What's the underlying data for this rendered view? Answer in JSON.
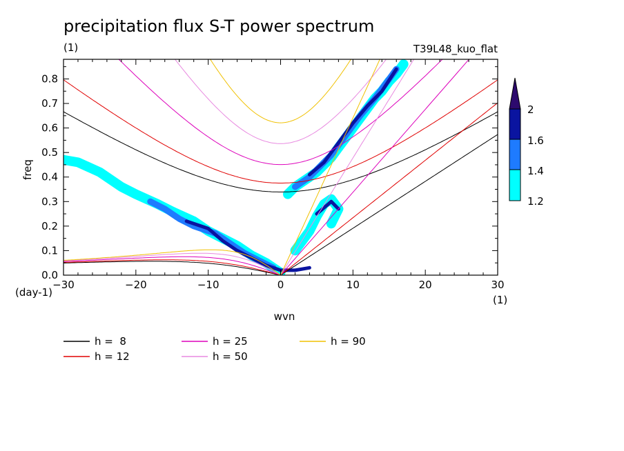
{
  "chart_data": {
    "type": "heatmap",
    "title": "precipitation flux S-T power spectrum",
    "subtitle_left": "(1)",
    "subtitle_right": "T39L48_kuo_flat",
    "xlabel": "wvn",
    "ylabel": "freq",
    "x_unit_label": "(1)",
    "y_unit_label": "(day-1)",
    "xlim": [
      -30,
      30
    ],
    "ylim": [
      0,
      0.88
    ],
    "x_ticks": [
      -30,
      -20,
      -10,
      0,
      10,
      20,
      30
    ],
    "x_tick_labels": [
      "−30",
      "−20",
      "−10",
      "0",
      "10",
      "20",
      "30"
    ],
    "y_ticks": [
      0,
      0.1,
      0.2,
      0.3,
      0.4,
      0.5,
      0.6,
      0.7,
      0.8
    ],
    "y_tick_labels": [
      "0.0",
      "0.1",
      "0.2",
      "0.3",
      "0.4",
      "0.5",
      "0.6",
      "0.7",
      "0.8"
    ],
    "colorbar": {
      "levels": [
        1.2,
        1.4,
        1.6,
        2
      ],
      "level_labels": [
        "1.2",
        "1.4",
        "1.6",
        "2"
      ],
      "colors": [
        "#00ffff",
        "#1e7bff",
        "#0a14a0",
        "#2d0a6e"
      ]
    },
    "contour_fill_colors": [
      "#00ffff",
      "#1e7bff",
      "#0a14a0"
    ],
    "dispersion_curves": [
      {
        "label": "h =  8",
        "h": 8,
        "color": "#000000"
      },
      {
        "label": "h = 12",
        "h": 12,
        "color": "#e00000"
      },
      {
        "label": "h = 25",
        "h": 25,
        "color": "#dd00bb"
      },
      {
        "label": "h = 50",
        "h": 50,
        "color": "#e889e0"
      },
      {
        "label": "h = 90",
        "h": 90,
        "color": "#f0c000"
      }
    ],
    "regions": [
      {
        "band": "westward",
        "points": [
          [
            -30,
            0.47
          ],
          [
            -28,
            0.46
          ],
          [
            -25,
            0.42
          ],
          [
            -22,
            0.36
          ],
          [
            -20,
            0.33
          ],
          [
            -17,
            0.29
          ],
          [
            -15,
            0.26
          ],
          [
            -12,
            0.22
          ],
          [
            -10,
            0.18
          ],
          [
            -8,
            0.15
          ],
          [
            -6,
            0.12
          ],
          [
            -4,
            0.08
          ],
          [
            -2,
            0.05
          ],
          [
            -1,
            0.03
          ],
          [
            0,
            0.01
          ]
        ],
        "level": 1.2
      },
      {
        "band": "westward",
        "points": [
          [
            -18,
            0.3
          ],
          [
            -16,
            0.27
          ],
          [
            -14,
            0.23
          ],
          [
            -12,
            0.2
          ],
          [
            -9,
            0.17
          ],
          [
            -7,
            0.13
          ],
          [
            -5,
            0.09
          ],
          [
            -3,
            0.06
          ],
          [
            -1,
            0.03
          ]
        ],
        "level": 1.4
      },
      {
        "band": "westward",
        "points": [
          [
            -13,
            0.22
          ],
          [
            -10,
            0.19
          ],
          [
            -8,
            0.14
          ],
          [
            -6,
            0.1
          ],
          [
            -4,
            0.07
          ],
          [
            -2,
            0.04
          ]
        ],
        "level": 1.6
      },
      {
        "band": "kelvin",
        "points": [
          [
            1,
            0.33
          ],
          [
            2,
            0.36
          ],
          [
            3,
            0.38
          ],
          [
            5,
            0.42
          ],
          [
            6,
            0.45
          ],
          [
            7,
            0.48
          ],
          [
            8,
            0.52
          ],
          [
            9,
            0.56
          ],
          [
            10,
            0.6
          ],
          [
            11,
            0.64
          ],
          [
            12,
            0.68
          ],
          [
            13,
            0.72
          ],
          [
            14,
            0.75
          ],
          [
            15,
            0.79
          ],
          [
            16,
            0.82
          ],
          [
            17,
            0.86
          ]
        ],
        "level": 1.2
      },
      {
        "band": "kelvin",
        "points": [
          [
            2,
            0.36
          ],
          [
            4,
            0.4
          ],
          [
            6,
            0.46
          ],
          [
            7,
            0.49
          ],
          [
            9,
            0.57
          ],
          [
            11,
            0.65
          ],
          [
            13,
            0.72
          ],
          [
            15,
            0.8
          ],
          [
            16,
            0.84
          ]
        ],
        "level": 1.4
      },
      {
        "band": "kelvin",
        "points": [
          [
            4,
            0.41
          ],
          [
            6,
            0.46
          ],
          [
            7,
            0.5
          ],
          [
            10,
            0.62
          ],
          [
            12,
            0.69
          ],
          [
            14,
            0.75
          ],
          [
            16,
            0.84
          ]
        ],
        "level": 1.6
      },
      {
        "band": "lower-eastward",
        "points": [
          [
            2,
            0.1
          ],
          [
            4,
            0.18
          ],
          [
            5,
            0.24
          ],
          [
            6,
            0.29
          ],
          [
            7,
            0.31
          ],
          [
            8,
            0.27
          ],
          [
            7,
            0.21
          ]
        ],
        "level": 1.2
      },
      {
        "band": "lower-eastward",
        "points": [
          [
            5,
            0.25
          ],
          [
            7,
            0.3
          ],
          [
            8,
            0.27
          ]
        ],
        "level": 1.6
      },
      {
        "band": "low-freq",
        "points": [
          [
            -2,
            0.04
          ],
          [
            0,
            0.02
          ],
          [
            2,
            0.02
          ],
          [
            4,
            0.03
          ]
        ],
        "level": 1.6
      }
    ]
  }
}
